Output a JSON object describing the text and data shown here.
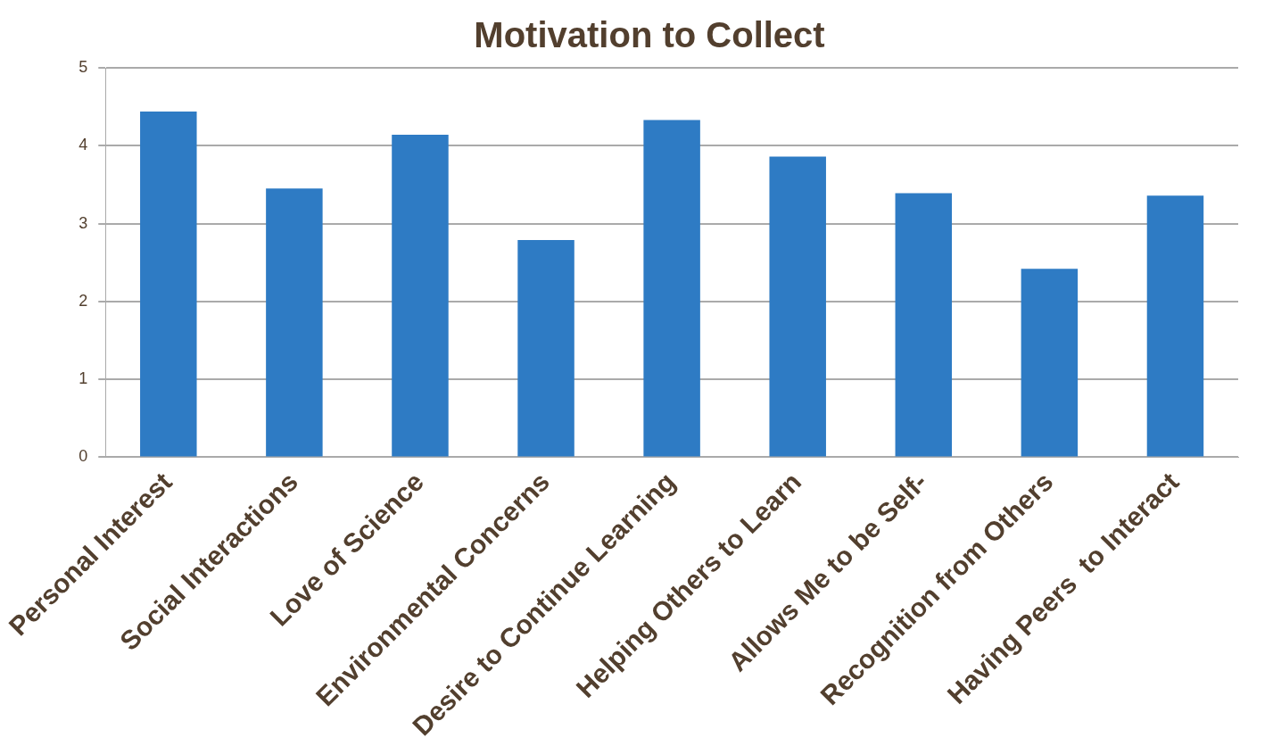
{
  "chart_data": {
    "type": "bar",
    "title": "Motivation to Collect",
    "categories": [
      "Personal Interest",
      "Social Interactions",
      "Love of Science",
      "Environmental Concerns",
      "Desire to Continue Learning",
      "Helping Others to Learn",
      "Allows Me to be Self-",
      "Recognition from Others",
      "Having Peers  to Interact"
    ],
    "values": [
      4.44,
      3.45,
      4.14,
      2.79,
      4.33,
      3.86,
      3.39,
      2.42,
      3.36
    ],
    "color": "#2e7bc4",
    "ylim": [
      0,
      5
    ],
    "yticks": [
      0,
      1,
      2,
      3,
      4,
      5
    ],
    "grid": "y",
    "legend": false
  }
}
